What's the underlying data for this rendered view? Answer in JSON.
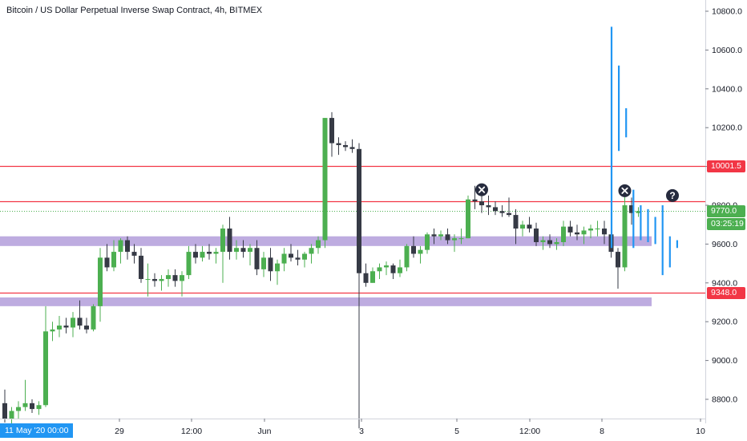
{
  "header": {
    "title": "Bitcoin / US Dollar Perpetual Inverse Swap Contract, 4h, BITMEX"
  },
  "price_labels": {
    "resistance": "10001.5",
    "support": "9348.0",
    "last": "9770.0",
    "countdown": "03:25:19"
  },
  "cursor_date": "11 May '20   00:00",
  "colors": {
    "up": "#4caf50",
    "down": "#363a45",
    "level_line": "#f23645",
    "zone": "#b39ddb",
    "projection": "#2196f3",
    "last_price": "#4caf50"
  },
  "chart_data": {
    "type": "candlestick",
    "title": "Bitcoin / US Dollar Perpetual Inverse Swap Contract, 4h, BITMEX",
    "ylim": [
      8650,
      10900
    ],
    "y_ticks": [
      8800,
      9000,
      9200,
      9400,
      9600,
      9800,
      10000,
      10200,
      10400,
      10600,
      10800
    ],
    "x_tick_labels": [
      "29",
      "12:00",
      "Jun",
      "3",
      "5",
      "12:00",
      "8",
      "10"
    ],
    "horizontal_levels": [
      10001.5,
      9820,
      9348.0
    ],
    "zones": [
      [
        9590,
        9640
      ],
      [
        9280,
        9325
      ]
    ],
    "last_price": 9770.0,
    "markers": [
      {
        "candle": 70,
        "price": 9880,
        "icon": "x"
      },
      {
        "candle": 91,
        "price": 9875,
        "icon": "x"
      },
      {
        "candle": 98,
        "price": 9850,
        "icon": "question"
      }
    ],
    "candles": [
      [
        8780,
        8850,
        8680,
        8700
      ],
      [
        8700,
        8760,
        8660,
        8740
      ],
      [
        8740,
        8790,
        8700,
        8760
      ],
      [
        8760,
        8900,
        8740,
        8780
      ],
      [
        8780,
        8800,
        8730,
        8750
      ],
      [
        8750,
        8790,
        8720,
        8770
      ],
      [
        8770,
        9280,
        8760,
        9150
      ],
      [
        9150,
        9200,
        9100,
        9160
      ],
      [
        9160,
        9230,
        9120,
        9180
      ],
      [
        9180,
        9220,
        9140,
        9170
      ],
      [
        9170,
        9250,
        9120,
        9220
      ],
      [
        9220,
        9310,
        9160,
        9180
      ],
      [
        9180,
        9220,
        9140,
        9160
      ],
      [
        9160,
        9290,
        9150,
        9280
      ],
      [
        9280,
        9580,
        9200,
        9530
      ],
      [
        9530,
        9600,
        9460,
        9480
      ],
      [
        9480,
        9620,
        9460,
        9560
      ],
      [
        9560,
        9630,
        9500,
        9620
      ],
      [
        9620,
        9640,
        9520,
        9560
      ],
      [
        9560,
        9600,
        9500,
        9540
      ],
      [
        9540,
        9580,
        9400,
        9420
      ],
      [
        9420,
        9500,
        9330,
        9420
      ],
      [
        9420,
        9450,
        9380,
        9410
      ],
      [
        9410,
        9440,
        9360,
        9420
      ],
      [
        9420,
        9470,
        9380,
        9440
      ],
      [
        9440,
        9470,
        9380,
        9410
      ],
      [
        9410,
        9460,
        9330,
        9440
      ],
      [
        9440,
        9590,
        9420,
        9560
      ],
      [
        9560,
        9600,
        9500,
        9530
      ],
      [
        9530,
        9590,
        9510,
        9560
      ],
      [
        9560,
        9600,
        9520,
        9550
      ],
      [
        9550,
        9580,
        9500,
        9560
      ],
      [
        9560,
        9700,
        9400,
        9680
      ],
      [
        9680,
        9740,
        9520,
        9560
      ],
      [
        9560,
        9620,
        9520,
        9580
      ],
      [
        9580,
        9620,
        9530,
        9560
      ],
      [
        9560,
        9600,
        9490,
        9580
      ],
      [
        9580,
        9620,
        9440,
        9470
      ],
      [
        9470,
        9560,
        9430,
        9530
      ],
      [
        9530,
        9580,
        9410,
        9460
      ],
      [
        9460,
        9520,
        9390,
        9500
      ],
      [
        9500,
        9580,
        9460,
        9550
      ],
      [
        9550,
        9600,
        9510,
        9530
      ],
      [
        9530,
        9570,
        9490,
        9520
      ],
      [
        9520,
        9560,
        9480,
        9550
      ],
      [
        9550,
        9600,
        9500,
        9580
      ],
      [
        9580,
        9640,
        9550,
        9620
      ],
      [
        9620,
        10250,
        9580,
        10250
      ],
      [
        10250,
        10280,
        10050,
        10120
      ],
      [
        10120,
        10150,
        10060,
        10110
      ],
      [
        10110,
        10130,
        10080,
        10100
      ],
      [
        10100,
        10140,
        10070,
        10090
      ],
      [
        10090,
        10120,
        8650,
        9450
      ],
      [
        9450,
        9500,
        9380,
        9400
      ],
      [
        9400,
        9480,
        9400,
        9460
      ],
      [
        9460,
        9500,
        9420,
        9480
      ],
      [
        9480,
        9510,
        9440,
        9490
      ],
      [
        9490,
        9500,
        9420,
        9450
      ],
      [
        9450,
        9520,
        9430,
        9480
      ],
      [
        9480,
        9600,
        9460,
        9590
      ],
      [
        9590,
        9640,
        9530,
        9550
      ],
      [
        9550,
        9590,
        9500,
        9570
      ],
      [
        9570,
        9660,
        9550,
        9650
      ],
      [
        9650,
        9680,
        9600,
        9640
      ],
      [
        9640,
        9670,
        9620,
        9650
      ],
      [
        9650,
        9680,
        9600,
        9620
      ],
      [
        9620,
        9650,
        9560,
        9630
      ],
      [
        9630,
        9680,
        9600,
        9630
      ],
      [
        9630,
        9850,
        9630,
        9830
      ],
      [
        9830,
        9900,
        9780,
        9820
      ],
      [
        9820,
        9850,
        9760,
        9800
      ],
      [
        9800,
        9850,
        9750,
        9790
      ],
      [
        9790,
        9820,
        9750,
        9770
      ],
      [
        9770,
        9800,
        9740,
        9760
      ],
      [
        9760,
        9840,
        9740,
        9750
      ],
      [
        9750,
        9780,
        9600,
        9680
      ],
      [
        9680,
        9720,
        9640,
        9700
      ],
      [
        9700,
        9740,
        9660,
        9680
      ],
      [
        9680,
        9710,
        9590,
        9610
      ],
      [
        9610,
        9640,
        9570,
        9620
      ],
      [
        9620,
        9650,
        9580,
        9600
      ],
      [
        9600,
        9630,
        9570,
        9610
      ],
      [
        9610,
        9720,
        9590,
        9690
      ],
      [
        9690,
        9720,
        9640,
        9660
      ],
      [
        9660,
        9700,
        9620,
        9650
      ],
      [
        9650,
        9690,
        9600,
        9670
      ],
      [
        9670,
        9700,
        9630,
        9680
      ],
      [
        9680,
        9720,
        9640,
        9680
      ],
      [
        9680,
        9720,
        9600,
        9650
      ],
      [
        9650,
        9660,
        9530,
        9560
      ],
      [
        9560,
        9580,
        9370,
        9480
      ],
      [
        9480,
        9850,
        9460,
        9800
      ],
      [
        9800,
        9840,
        9700,
        9760
      ],
      [
        9760,
        9790,
        9740,
        9770
      ]
    ],
    "projection_bars": [
      [
        9580,
        10720
      ],
      [
        10080,
        10520
      ],
      [
        10150,
        10300
      ],
      [
        9580,
        9880
      ],
      [
        9620,
        9800
      ],
      [
        9610,
        9780
      ],
      [
        9600,
        9740
      ],
      [
        9440,
        9800
      ],
      [
        9480,
        9640
      ],
      [
        9580,
        9620
      ]
    ]
  }
}
